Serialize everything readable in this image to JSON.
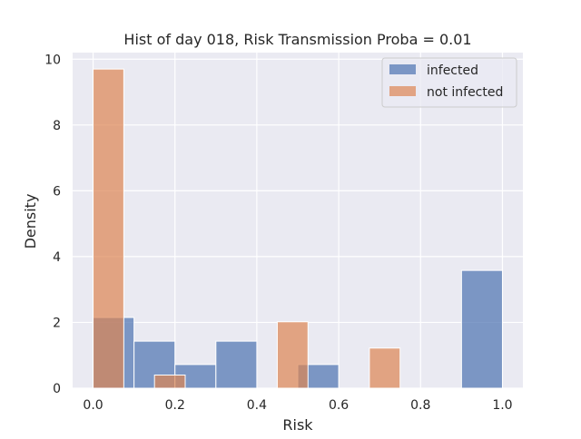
{
  "chart_data": {
    "type": "bar",
    "title": "Hist of day 018, Risk Transmission Proba = 0.01",
    "xlabel": "Risk",
    "ylabel": "Density",
    "xlim": [
      -0.05,
      1.05
    ],
    "ylim": [
      0,
      10.2
    ],
    "xticks": [
      0.0,
      0.2,
      0.4,
      0.6,
      0.8,
      1.0
    ],
    "xtick_labels": [
      "0.0",
      "0.2",
      "0.4",
      "0.6",
      "0.8",
      "1.0"
    ],
    "yticks": [
      0,
      2,
      4,
      6,
      8,
      10
    ],
    "ytick_labels": [
      "0",
      "2",
      "4",
      "6",
      "8",
      "10"
    ],
    "grid": true,
    "legend_position": "top-right",
    "series": [
      {
        "name": "infected",
        "color": "#4c72b0",
        "bins": [
          {
            "x0": 0.0,
            "x1": 0.1,
            "value": 2.15
          },
          {
            "x0": 0.1,
            "x1": 0.2,
            "value": 1.43
          },
          {
            "x0": 0.2,
            "x1": 0.3,
            "value": 0.72
          },
          {
            "x0": 0.3,
            "x1": 0.4,
            "value": 1.43
          },
          {
            "x0": 0.5,
            "x1": 0.6,
            "value": 0.72
          },
          {
            "x0": 0.9,
            "x1": 1.0,
            "value": 3.58
          }
        ]
      },
      {
        "name": "not infected",
        "color": "#dd8452",
        "bins": [
          {
            "x0": 0.0,
            "x1": 0.075,
            "value": 9.7
          },
          {
            "x0": 0.15,
            "x1": 0.225,
            "value": 0.4
          },
          {
            "x0": 0.45,
            "x1": 0.525,
            "value": 2.02
          },
          {
            "x0": 0.675,
            "x1": 0.75,
            "value": 1.22
          }
        ]
      }
    ]
  }
}
